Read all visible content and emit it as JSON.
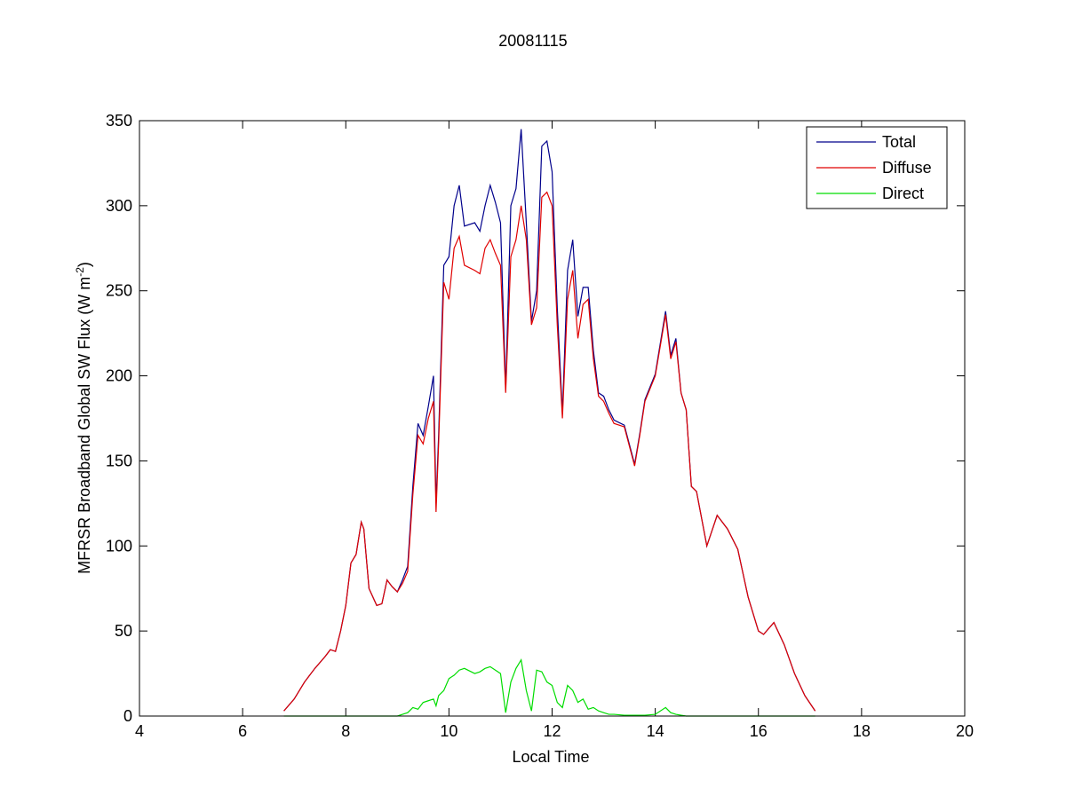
{
  "chart_data": {
    "type": "line",
    "title": "20081115",
    "xlabel": "Local Time",
    "ylabel": [
      "MFRSR Broadband Global SW Flux (W m",
      "-2",
      ")"
    ],
    "x": [
      6.8,
      7.0,
      7.2,
      7.4,
      7.6,
      7.7,
      7.8,
      7.9,
      8.0,
      8.1,
      8.2,
      8.3,
      8.35,
      8.45,
      8.6,
      8.7,
      8.8,
      8.9,
      9.0,
      9.1,
      9.2,
      9.3,
      9.4,
      9.5,
      9.6,
      9.7,
      9.75,
      9.8,
      9.9,
      10.0,
      10.1,
      10.2,
      10.3,
      10.5,
      10.6,
      10.7,
      10.8,
      10.9,
      11.0,
      11.1,
      11.2,
      11.3,
      11.4,
      11.5,
      11.6,
      11.7,
      11.8,
      11.9,
      12.0,
      12.1,
      12.2,
      12.3,
      12.4,
      12.5,
      12.6,
      12.7,
      12.8,
      12.9,
      13.0,
      13.1,
      13.2,
      13.4,
      13.6,
      13.7,
      13.8,
      14.0,
      14.2,
      14.3,
      14.4,
      14.5,
      14.6,
      14.7,
      14.8,
      15.0,
      15.2,
      15.4,
      15.6,
      15.8,
      16.0,
      16.1,
      16.3,
      16.5,
      16.7,
      16.9,
      17.1
    ],
    "series": [
      {
        "name": "Total",
        "color": "#00008b",
        "values": [
          3,
          10,
          20,
          28,
          35,
          39,
          38,
          50,
          65,
          90,
          95,
          114,
          110,
          75,
          65,
          66,
          80,
          76,
          73,
          80,
          88,
          135,
          172,
          165,
          182,
          200,
          125,
          165,
          265,
          270,
          300,
          312,
          288,
          290,
          285,
          300,
          312,
          302,
          290,
          192,
          300,
          310,
          345,
          290,
          232,
          250,
          335,
          338,
          320,
          240,
          178,
          262,
          280,
          235,
          252,
          252,
          215,
          190,
          188,
          180,
          174,
          171,
          148,
          166,
          186,
          201,
          238,
          212,
          222,
          190,
          180,
          135,
          132,
          100,
          118,
          110,
          98,
          70,
          50,
          48,
          55,
          42,
          25,
          12,
          3
        ]
      },
      {
        "name": "Diffuse",
        "color": "#e00000",
        "values": [
          3,
          10,
          20,
          28,
          35,
          39,
          38,
          50,
          65,
          90,
          95,
          114,
          110,
          75,
          65,
          66,
          80,
          76,
          73,
          78,
          85,
          130,
          165,
          160,
          175,
          185,
          120,
          160,
          255,
          245,
          275,
          282,
          265,
          262,
          260,
          275,
          280,
          272,
          265,
          190,
          270,
          280,
          300,
          280,
          230,
          240,
          305,
          308,
          300,
          230,
          175,
          245,
          262,
          222,
          242,
          245,
          210,
          188,
          185,
          178,
          172,
          170,
          147,
          165,
          185,
          200,
          236,
          210,
          220,
          190,
          180,
          135,
          132,
          100,
          118,
          110,
          98,
          70,
          50,
          48,
          55,
          42,
          25,
          12,
          3
        ]
      },
      {
        "name": "Direct",
        "color": "#00dd00",
        "values": [
          0,
          0,
          0,
          0,
          0,
          0,
          0,
          0,
          0,
          0,
          0,
          0,
          0,
          0,
          0,
          0,
          0,
          0,
          0,
          1,
          2,
          5,
          4,
          8,
          9,
          10,
          6,
          12,
          15,
          22,
          24,
          27,
          28,
          25,
          26,
          28,
          29,
          27,
          25,
          2,
          20,
          28,
          33,
          15,
          3,
          27,
          26,
          20,
          18,
          8,
          5,
          18,
          15,
          8,
          10,
          4,
          5,
          3,
          2,
          1,
          1,
          0.5,
          0.5,
          0.5,
          0.5,
          1,
          5,
          2,
          1,
          0.5,
          0,
          0,
          0,
          0,
          0,
          0,
          0,
          0,
          0,
          0,
          0,
          0,
          0,
          0,
          0
        ]
      }
    ],
    "xlim": [
      4,
      20
    ],
    "xticks": [
      4,
      6,
      8,
      10,
      12,
      14,
      16,
      18,
      20
    ],
    "ylim": [
      0,
      350
    ],
    "yticks": [
      0,
      50,
      100,
      150,
      200,
      250,
      300,
      350
    ],
    "legend": "upper-right"
  }
}
